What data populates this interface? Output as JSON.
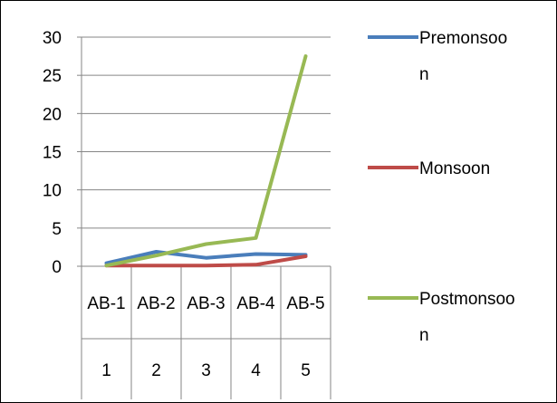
{
  "chart_data": {
    "type": "line",
    "title": "",
    "xlabel": "",
    "ylabel": "",
    "categories": [
      "AB-1",
      "AB-2",
      "AB-3",
      "AB-4",
      "AB-5"
    ],
    "category_numbers": [
      "1",
      "2",
      "3",
      "4",
      "5"
    ],
    "ylim": [
      0,
      30
    ],
    "yticks": [
      "0",
      "5",
      "10",
      "15",
      "20",
      "25",
      "30"
    ],
    "grid": true,
    "legend_position": "right",
    "series": [
      {
        "name_lines": [
          "Premonsoo",
          "n"
        ],
        "color": "#4a7ebb",
        "values": [
          0.4,
          1.9,
          1.1,
          1.6,
          1.5
        ]
      },
      {
        "name_lines": [
          "Monsoon"
        ],
        "color": "#be4b48",
        "values": [
          0.1,
          0.1,
          0.1,
          0.2,
          1.3
        ]
      },
      {
        "name_lines": [
          "Postmonsoo",
          "n"
        ],
        "color": "#98b954",
        "values": [
          0.1,
          1.4,
          2.9,
          3.7,
          27.5
        ]
      }
    ]
  }
}
